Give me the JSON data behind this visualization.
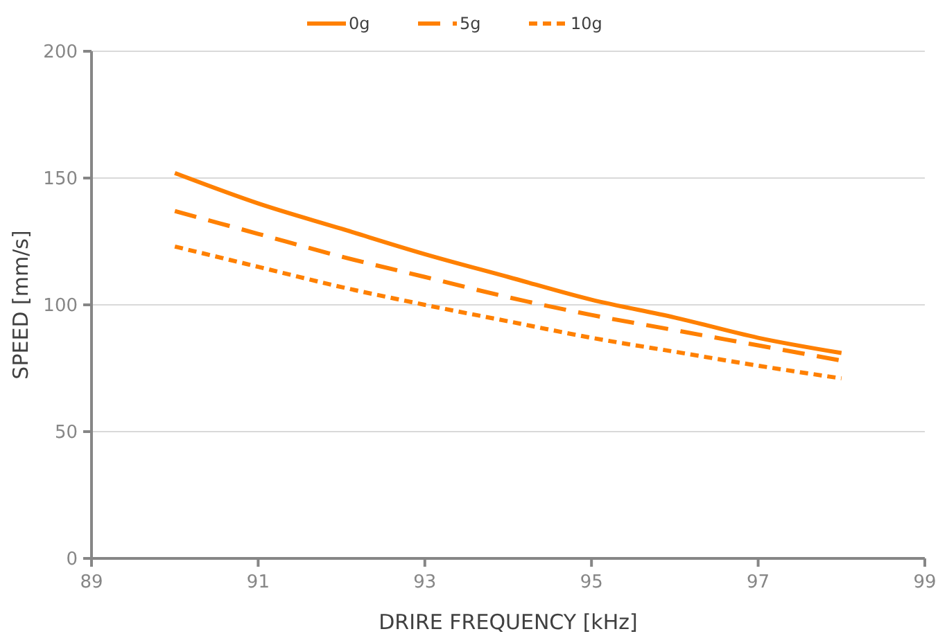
{
  "chart_data": {
    "type": "line",
    "xlabel": "DRIRE FREQUENCY [kHz]",
    "ylabel": "SPEED [mm/s]",
    "x": [
      90,
      91,
      92,
      93,
      94,
      95,
      96,
      97,
      98
    ],
    "xlim": [
      89,
      99
    ],
    "xticks": [
      89,
      91,
      93,
      95,
      97,
      99
    ],
    "ylim": [
      0,
      200
    ],
    "yticks": [
      0,
      50,
      100,
      150,
      200
    ],
    "grid": "y",
    "legend": "top",
    "marker": "none",
    "series": [
      {
        "name": "0g",
        "color": "#ff8000",
        "line_style": "solid",
        "values": [
          152,
          140,
          130,
          120,
          111,
          102,
          95,
          87,
          81
        ]
      },
      {
        "name": "5g",
        "color": "#ff8000",
        "line_style": "dashed",
        "values": [
          137,
          128,
          119,
          111,
          103,
          96,
          90,
          84,
          78
        ]
      },
      {
        "name": "10g",
        "color": "#ff8000",
        "line_style": "dotted",
        "values": [
          123,
          115,
          107,
          100,
          93.5,
          87,
          81.5,
          76,
          71
        ]
      }
    ]
  }
}
